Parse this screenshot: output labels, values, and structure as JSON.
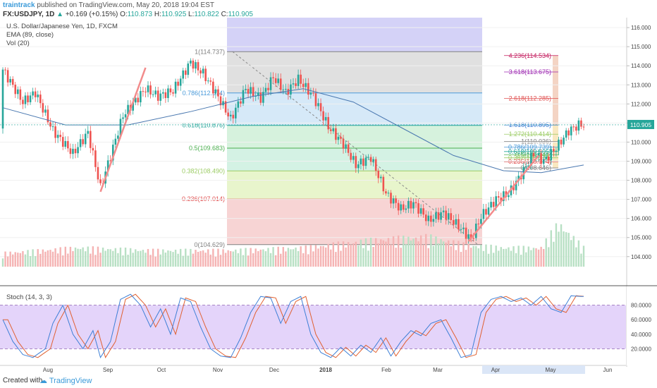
{
  "header": {
    "author": "traintrack",
    "published": "published on TradingView.com, May 20, 2018 19:04 EST",
    "symbol": "FX:USDJPY, 1D",
    "change": "+0.169 (+0.15%)",
    "open_label": "O:",
    "open": "110.873",
    "high_label": "H:",
    "high": "110.925",
    "low_label": "L:",
    "low": "110.822",
    "close_label": "C:",
    "close": "110.905",
    "last": "110.905"
  },
  "legend": {
    "title": "U.S. Dollar/Japanese Yen, 1D, FXCM",
    "ema": "EMA (89, close)",
    "vol": "Vol (20)",
    "stoch": "Stoch (14, 3, 3)"
  },
  "footer": {
    "created": "Created with",
    "brand": "TradingView"
  },
  "colors": {
    "up": "#26a69a",
    "down": "#ef5350",
    "ema": "#4a78b0",
    "stoch_k": "#3d7fd6",
    "stoch_d": "#e06030",
    "stoch_band": "#e4d4fa"
  },
  "chart_data": [
    {
      "type": "candlestick",
      "title": "U.S. Dollar/Japanese Yen, 1D, FXCM",
      "x_ticks": [
        "Aug",
        "Sep",
        "Oct",
        "Nov",
        "Dec",
        "2018",
        "Feb",
        "Mar",
        "Apr",
        "May",
        "Jun"
      ],
      "y_ticks": [
        "116.000",
        "115.000",
        "114.000",
        "113.000",
        "112.000",
        "111.000",
        "110.000",
        "109.000",
        "108.000",
        "107.000",
        "106.000",
        "105.000",
        "104.000"
      ],
      "ylim": [
        103.4,
        116.3
      ],
      "close_path": [
        [
          0,
          113.8
        ],
        [
          8,
          112.1
        ],
        [
          13,
          112.6
        ],
        [
          20,
          110.6
        ],
        [
          28,
          109.4
        ],
        [
          34,
          110.5
        ],
        [
          39,
          107.6
        ],
        [
          48,
          111.4
        ],
        [
          57,
          112.8
        ],
        [
          62,
          112.4
        ],
        [
          68,
          112.7
        ],
        [
          75,
          114.2
        ],
        [
          80,
          113.6
        ],
        [
          85,
          112.6
        ],
        [
          91,
          111.2
        ],
        [
          97,
          112.8
        ],
        [
          103,
          112.3
        ],
        [
          108,
          113.4
        ],
        [
          113,
          112.6
        ],
        [
          118,
          113.3
        ],
        [
          124,
          112.4
        ],
        [
          130,
          110.8
        ],
        [
          136,
          109.9
        ],
        [
          141,
          108.8
        ],
        [
          147,
          109.2
        ],
        [
          153,
          107.3
        ],
        [
          159,
          106.5
        ],
        [
          164,
          106.8
        ],
        [
          170,
          105.9
        ],
        [
          176,
          106.3
        ],
        [
          182,
          105.6
        ],
        [
          187,
          104.9
        ],
        [
          191,
          106.1
        ],
        [
          197,
          107.0
        ],
        [
          202,
          107.3
        ],
        [
          208,
          108.5
        ],
        [
          212,
          109.4
        ],
        [
          216,
          109.0
        ],
        [
          221,
          109.7
        ],
        [
          226,
          110.6
        ],
        [
          230,
          110.9
        ]
      ],
      "ema89": [
        [
          0,
          111.8
        ],
        [
          25,
          110.9
        ],
        [
          50,
          110.9
        ],
        [
          75,
          111.6
        ],
        [
          100,
          112.4
        ],
        [
          120,
          112.8
        ],
        [
          140,
          112.1
        ],
        [
          160,
          110.7
        ],
        [
          180,
          109.3
        ],
        [
          200,
          108.5
        ],
        [
          215,
          108.4
        ],
        [
          232,
          108.8
        ]
      ],
      "fibonacci_retracement": {
        "levels": [
          {
            "ratio": "1",
            "value": "114.737"
          },
          {
            "ratio": "0.786",
            "value": "112.574"
          },
          {
            "ratio": "0.618",
            "value": "110.876"
          },
          {
            "ratio": "0.5",
            "value": "109.683"
          },
          {
            "ratio": "0.382",
            "value": "108.490"
          },
          {
            "ratio": "0.236",
            "value": "107.014"
          },
          {
            "ratio": "0",
            "value": "104.629"
          }
        ]
      },
      "fibonacci_extension": {
        "levels": [
          {
            "ratio": "4.236",
            "value": "114.534"
          },
          {
            "ratio": "3.618",
            "value": "113.675"
          },
          {
            "ratio": "2.618",
            "value": "112.285"
          },
          {
            "ratio": "1.618",
            "value": "110.895"
          },
          {
            "ratio": "1.272",
            "value": "110.414"
          },
          {
            "ratio": "1",
            "value": "110.036"
          },
          {
            "ratio": "0.786",
            "value": "109.739"
          },
          {
            "ratio": "0.618",
            "value": "109.505"
          },
          {
            "ratio": "0.5",
            "value": "109.341"
          },
          {
            "ratio": "0.382",
            "value": "109.177"
          },
          {
            "ratio": "0.236",
            "value": "108.974"
          },
          {
            "ratio": "0",
            "value": "108.646"
          }
        ]
      },
      "volume_path": [
        [
          0,
          0.25
        ],
        [
          30,
          0.35
        ],
        [
          60,
          0.3
        ],
        [
          90,
          0.3
        ],
        [
          120,
          0.35
        ],
        [
          150,
          0.5
        ],
        [
          170,
          0.55
        ],
        [
          185,
          0.4
        ],
        [
          200,
          0.35
        ],
        [
          215,
          0.35
        ],
        [
          222,
          0.8
        ],
        [
          232,
          0.35
        ]
      ]
    },
    {
      "type": "line",
      "title": "Stoch (14, 3, 3)",
      "y_ticks": [
        "80.0000",
        "60.0000",
        "40.0000",
        "20.0000"
      ],
      "ylim": [
        0,
        100
      ],
      "bands": [
        20,
        80
      ],
      "k_path": [
        [
          0,
          60
        ],
        [
          4,
          30
        ],
        [
          8,
          12
        ],
        [
          12,
          8
        ],
        [
          17,
          20
        ],
        [
          20,
          55
        ],
        [
          24,
          80
        ],
        [
          28,
          40
        ],
        [
          32,
          20
        ],
        [
          36,
          45
        ],
        [
          39,
          8
        ],
        [
          43,
          30
        ],
        [
          47,
          88
        ],
        [
          51,
          95
        ],
        [
          55,
          80
        ],
        [
          59,
          50
        ],
        [
          63,
          75
        ],
        [
          67,
          40
        ],
        [
          71,
          90
        ],
        [
          75,
          85
        ],
        [
          79,
          50
        ],
        [
          83,
          20
        ],
        [
          87,
          10
        ],
        [
          91,
          8
        ],
        [
          95,
          35
        ],
        [
          99,
          70
        ],
        [
          103,
          92
        ],
        [
          107,
          90
        ],
        [
          111,
          55
        ],
        [
          115,
          85
        ],
        [
          119,
          92
        ],
        [
          123,
          40
        ],
        [
          127,
          15
        ],
        [
          131,
          8
        ],
        [
          135,
          22
        ],
        [
          139,
          10
        ],
        [
          143,
          25
        ],
        [
          147,
          15
        ],
        [
          151,
          35
        ],
        [
          155,
          10
        ],
        [
          159,
          30
        ],
        [
          163,
          45
        ],
        [
          167,
          38
        ],
        [
          171,
          55
        ],
        [
          175,
          60
        ],
        [
          179,
          35
        ],
        [
          183,
          8
        ],
        [
          187,
          12
        ],
        [
          191,
          70
        ],
        [
          195,
          88
        ],
        [
          199,
          92
        ],
        [
          203,
          85
        ],
        [
          207,
          90
        ],
        [
          211,
          80
        ],
        [
          215,
          92
        ],
        [
          219,
          75
        ],
        [
          223,
          70
        ],
        [
          227,
          93
        ],
        [
          231,
          92
        ]
      ]
    }
  ]
}
